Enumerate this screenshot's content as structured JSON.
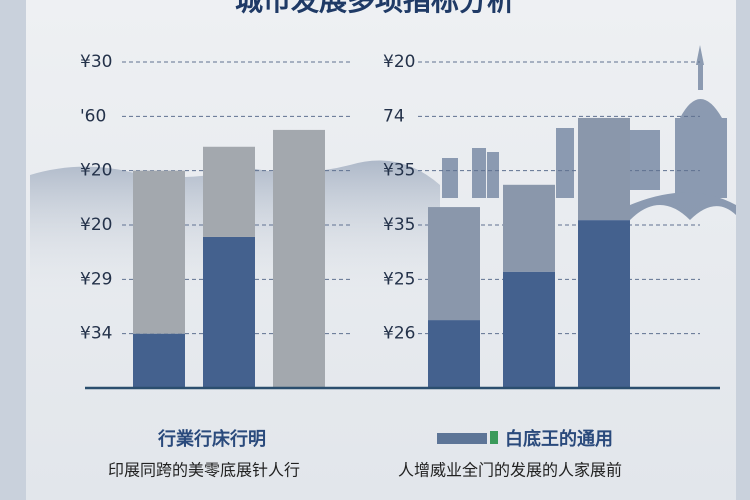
{
  "title": "城市发展多项指标分析",
  "chart_data": [
    {
      "type": "bar",
      "stacked": true,
      "categories": [
        null,
        null,
        null
      ],
      "series": [
        {
          "color": "#44618e",
          "values": [
            1.0,
            2.78,
            0
          ]
        },
        {
          "color": "#a3a8ae",
          "values": [
            3.0,
            1.66,
            4.75
          ]
        }
      ],
      "ylim": [
        0,
        6
      ],
      "yticks": [
        {
          "value": 1,
          "label": "¥34"
        },
        {
          "value": 2,
          "label": "¥29"
        },
        {
          "value": 3,
          "label": "¥20"
        },
        {
          "value": 4,
          "label": "¥20"
        },
        {
          "value": 5,
          "label": "'60"
        },
        {
          "value": 6,
          "label": "¥30"
        }
      ],
      "grid": true,
      "caption": "行業行床行明",
      "note": "印展同跨的美零底展针人行"
    },
    {
      "type": "bar",
      "stacked": true,
      "categories": [
        null,
        null,
        null
      ],
      "series": [
        {
          "color": "#44618e",
          "values": [
            1.25,
            2.14,
            3.09
          ]
        },
        {
          "color": "#8a97ab",
          "values": [
            2.08,
            1.6,
            1.88
          ]
        }
      ],
      "ylim": [
        0,
        6
      ],
      "yticks": [
        {
          "value": 1,
          "label": "¥26"
        },
        {
          "value": 2,
          "label": "¥25"
        },
        {
          "value": 3,
          "label": "¥35"
        },
        {
          "value": 4,
          "label": "¥35"
        },
        {
          "value": 5,
          "label": "74"
        },
        {
          "value": 6,
          "label": "¥20"
        }
      ],
      "grid": true,
      "caption": "白底王的通用",
      "note": "人增威业全门的发展的人家展前"
    }
  ]
}
